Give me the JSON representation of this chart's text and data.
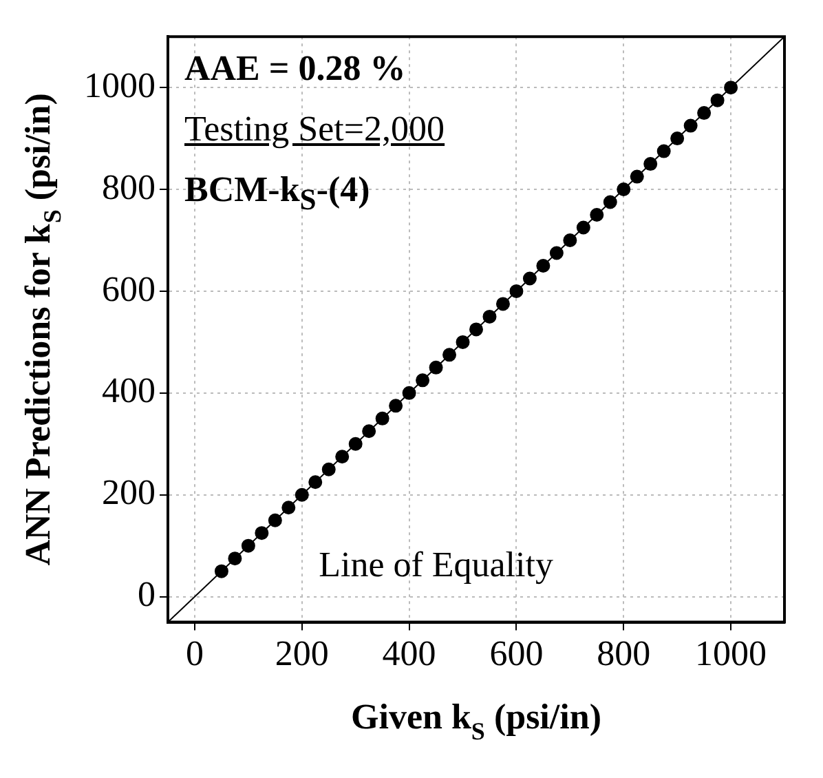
{
  "chart_data": {
    "type": "scatter",
    "xlabel": "Given k$_{S}$ (psi/in)",
    "ylabel": "ANN Predictions for k$_{S}$ (psi/in)",
    "annotations": [
      "AAE = 0.28 %",
      "Testing Set=2,000",
      "BCM-k$_{S}$-(4)"
    ],
    "xlim": [
      -50,
      1100
    ],
    "ylim": [
      -50,
      1100
    ],
    "xticks": [
      0,
      200,
      400,
      600,
      800,
      1000
    ],
    "yticks": [
      0,
      200,
      400,
      600,
      800,
      1000
    ],
    "grid": true,
    "legend": false,
    "marker": "circle",
    "series": [
      {
        "color": "#000000",
        "x": [
          50,
          75,
          100,
          125,
          150,
          175,
          200,
          225,
          250,
          275,
          300,
          325,
          350,
          375,
          400,
          425,
          450,
          475,
          500,
          525,
          550,
          575,
          600,
          625,
          650,
          675,
          700,
          725,
          750,
          775,
          800,
          825,
          850,
          875,
          900,
          925,
          950,
          975,
          1000
        ],
        "values": [
          50,
          75,
          100,
          125,
          150,
          175,
          200,
          225,
          250,
          275,
          300,
          325,
          350,
          375,
          400,
          425,
          450,
          475,
          500,
          525,
          550,
          575,
          600,
          625,
          650,
          675,
          700,
          725,
          750,
          775,
          800,
          825,
          850,
          875,
          900,
          925,
          950,
          975,
          1000
        ]
      },
      {
        "type": "line",
        "name": "Line of Equality",
        "color": "#000000",
        "x": [
          -50,
          1100
        ],
        "values": [
          -50,
          1100
        ],
        "marker": "none"
      }
    ]
  }
}
